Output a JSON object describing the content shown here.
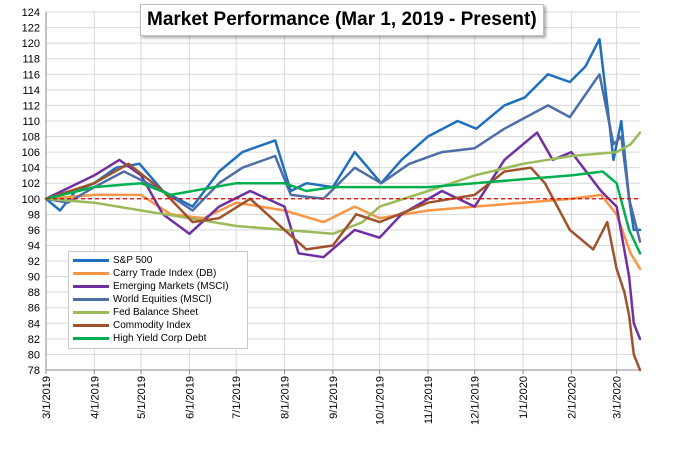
{
  "chart_data": {
    "type": "line",
    "title": "Market Performance (Mar 1, 2019 - Present)",
    "xlabel": "",
    "ylabel": "",
    "ylim": [
      78,
      124
    ],
    "y_ticks": [
      78,
      80,
      82,
      84,
      86,
      88,
      90,
      92,
      94,
      96,
      98,
      100,
      102,
      104,
      106,
      108,
      110,
      112,
      114,
      116,
      118,
      120,
      122,
      124
    ],
    "x_range": [
      "2019-03-01",
      "2020-03-16"
    ],
    "x_tick_labels": [
      "3/1/2019",
      "4/1/2019",
      "5/1/2019",
      "6/1/2019",
      "7/1/2019",
      "8/1/2019",
      "9/1/2019",
      "10/1/2019",
      "11/1/2019",
      "12/1/2019",
      "1/1/2020",
      "2/1/2020",
      "3/1/2020"
    ],
    "reference_line": {
      "y": 100,
      "style": "dashed",
      "color": "#e00000"
    },
    "grid": true,
    "legend_position": "bottom-left",
    "series": [
      {
        "name": "S&P 500",
        "color": "#1f6fbf",
        "x": [
          "2019-03-01",
          "2019-03-10",
          "2019-03-20",
          "2019-04-01",
          "2019-04-15",
          "2019-04-30",
          "2019-05-15",
          "2019-06-03",
          "2019-06-20",
          "2019-07-05",
          "2019-07-26",
          "2019-08-05",
          "2019-08-15",
          "2019-09-01",
          "2019-09-15",
          "2019-10-02",
          "2019-10-15",
          "2019-11-01",
          "2019-11-20",
          "2019-12-02",
          "2019-12-20",
          "2020-01-02",
          "2020-01-17",
          "2020-01-31",
          "2020-02-10",
          "2020-02-19",
          "2020-02-24",
          "2020-02-28",
          "2020-03-04",
          "2020-03-09",
          "2020-03-12",
          "2020-03-16"
        ],
        "values": [
          100,
          98.5,
          101,
          102,
          104,
          104.5,
          101,
          99,
          103.5,
          106,
          107.5,
          101,
          102,
          101.5,
          106,
          102,
          105,
          108,
          110,
          109,
          112,
          113,
          116,
          115,
          117,
          120.5,
          112,
          105,
          110,
          100,
          96,
          96
        ]
      },
      {
        "name": "Carry Trade Index (DB)",
        "color": "#f79646",
        "x": [
          "2019-03-01",
          "2019-04-01",
          "2019-05-01",
          "2019-05-20",
          "2019-06-10",
          "2019-07-01",
          "2019-08-01",
          "2019-08-26",
          "2019-09-15",
          "2019-10-01",
          "2019-11-01",
          "2019-12-01",
          "2020-01-01",
          "2020-02-01",
          "2020-02-20",
          "2020-03-01",
          "2020-03-10",
          "2020-03-16"
        ],
        "values": [
          100,
          100.5,
          100.5,
          98,
          97.5,
          99.5,
          98.5,
          97,
          99,
          97.5,
          98.5,
          99,
          99.5,
          100,
          100.5,
          98,
          93,
          91
        ]
      },
      {
        "name": "Emerging Markets (MSCI)",
        "color": "#7030a0",
        "x": [
          "2019-03-01",
          "2019-04-01",
          "2019-04-17",
          "2019-05-01",
          "2019-05-15",
          "2019-06-01",
          "2019-06-20",
          "2019-07-10",
          "2019-08-01",
          "2019-08-10",
          "2019-08-26",
          "2019-09-15",
          "2019-10-01",
          "2019-10-15",
          "2019-11-10",
          "2019-12-01",
          "2019-12-20",
          "2020-01-10",
          "2020-01-20",
          "2020-02-01",
          "2020-02-20",
          "2020-03-01",
          "2020-03-09",
          "2020-03-12",
          "2020-03-16"
        ],
        "values": [
          100,
          103,
          105,
          103,
          98,
          95.5,
          99,
          101,
          99,
          93,
          92.5,
          96,
          95,
          98,
          101,
          99,
          105,
          108.5,
          105,
          106,
          101,
          99,
          90,
          84,
          82
        ]
      },
      {
        "name": "World Equities (MSCI)",
        "color": "#4f6ea8",
        "x": [
          "2019-03-01",
          "2019-03-15",
          "2019-04-01",
          "2019-04-20",
          "2019-05-15",
          "2019-06-03",
          "2019-06-20",
          "2019-07-05",
          "2019-07-26",
          "2019-08-05",
          "2019-08-26",
          "2019-09-15",
          "2019-10-02",
          "2019-10-20",
          "2019-11-10",
          "2019-12-01",
          "2019-12-20",
          "2020-01-17",
          "2020-01-31",
          "2020-02-19",
          "2020-02-28",
          "2020-03-04",
          "2020-03-09",
          "2020-03-16"
        ],
        "values": [
          100,
          99.5,
          101.5,
          103.5,
          101,
          98.5,
          102,
          104,
          105.5,
          100.5,
          100,
          104,
          102,
          104.5,
          106,
          106.5,
          109,
          112,
          110.5,
          116,
          107,
          108,
          100,
          94.5
        ]
      },
      {
        "name": "Fed Balance Sheet",
        "color": "#9bbb59",
        "x": [
          "2019-03-01",
          "2019-04-01",
          "2019-05-01",
          "2019-06-01",
          "2019-07-01",
          "2019-08-01",
          "2019-09-01",
          "2019-09-20",
          "2019-10-01",
          "2019-11-01",
          "2019-12-01",
          "2020-01-01",
          "2020-02-01",
          "2020-03-01",
          "2020-03-10",
          "2020-03-16"
        ],
        "values": [
          100,
          99.5,
          98.5,
          97.5,
          96.5,
          96,
          95.5,
          97,
          99,
          101,
          103,
          104.5,
          105.5,
          106,
          107,
          108.5
        ]
      },
      {
        "name": "Commodity Index",
        "color": "#a0522d",
        "x": [
          "2019-03-01",
          "2019-04-01",
          "2019-04-23",
          "2019-05-15",
          "2019-06-03",
          "2019-06-20",
          "2019-07-10",
          "2019-08-01",
          "2019-08-15",
          "2019-09-01",
          "2019-09-16",
          "2019-10-01",
          "2019-11-01",
          "2019-12-01",
          "2019-12-20",
          "2020-01-06",
          "2020-01-15",
          "2020-01-31",
          "2020-02-15",
          "2020-02-24",
          "2020-03-01",
          "2020-03-06",
          "2020-03-09",
          "2020-03-12",
          "2020-03-16"
        ],
        "values": [
          100,
          102,
          104.5,
          101,
          97,
          97.5,
          100,
          96,
          93.5,
          94,
          98,
          97,
          99.5,
          100.5,
          103.5,
          104,
          102,
          96,
          93.5,
          97,
          91,
          88,
          85,
          80,
          78
        ]
      },
      {
        "name": "High Yield Corp Debt",
        "color": "#00b050",
        "x": [
          "2019-03-01",
          "2019-04-01",
          "2019-05-01",
          "2019-05-20",
          "2019-06-03",
          "2019-07-01",
          "2019-08-01",
          "2019-08-15",
          "2019-09-01",
          "2019-10-01",
          "2019-11-01",
          "2019-12-01",
          "2020-01-01",
          "2020-02-01",
          "2020-02-21",
          "2020-03-01",
          "2020-03-09",
          "2020-03-16"
        ],
        "values": [
          100,
          101.5,
          102,
          100.5,
          101,
          102,
          102,
          101,
          101.5,
          101.5,
          101.5,
          102,
          102.5,
          103,
          103.5,
          102,
          96,
          93
        ]
      }
    ]
  }
}
